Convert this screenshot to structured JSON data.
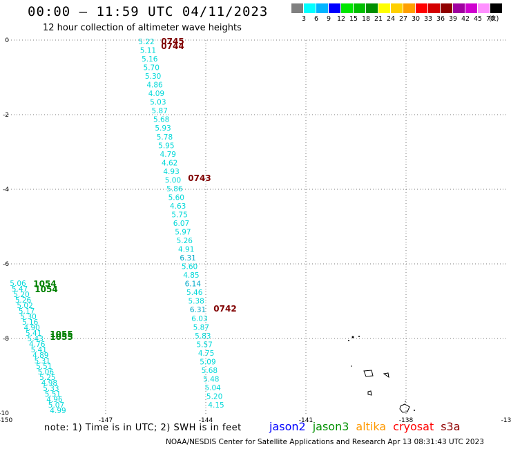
{
  "header": {
    "title": "00:00 – 11:59 UTC 04/11/2023",
    "subtitle": "12 hour collection of altimeter wave heights"
  },
  "legend": {
    "unit": "(ft)",
    "items": [
      {
        "label": "3",
        "color": "#808080"
      },
      {
        "label": "6",
        "color": "#00ffff"
      },
      {
        "label": "9",
        "color": "#00b4ff"
      },
      {
        "label": "12",
        "color": "#0000ff"
      },
      {
        "label": "15",
        "color": "#00e600"
      },
      {
        "label": "18",
        "color": "#00c000"
      },
      {
        "label": "21",
        "color": "#009000"
      },
      {
        "label": "24",
        "color": "#ffff00"
      },
      {
        "label": "27",
        "color": "#ffd000"
      },
      {
        "label": "30",
        "color": "#ffa000"
      },
      {
        "label": "33",
        "color": "#ff0000"
      },
      {
        "label": "36",
        "color": "#d40000"
      },
      {
        "label": "39",
        "color": "#900000"
      },
      {
        "label": "42",
        "color": "#a000a0"
      },
      {
        "label": "45",
        "color": "#d000d0"
      },
      {
        "label": "70",
        "color": "#ff90ff"
      },
      {
        "label": "",
        "color": "#000000"
      }
    ]
  },
  "map": {
    "lon_labels": [
      "-150",
      "-147",
      "-144",
      "-141",
      "-138",
      "-13"
    ],
    "lat_labels": [
      "0",
      "-2",
      "-4",
      "-6",
      "-8",
      "-10"
    ],
    "track_a": {
      "color": "#00d8d8",
      "values": [
        "5.22",
        "5.11",
        "5.16",
        "5.70",
        "5.30",
        "4.86",
        "4.09",
        "5.03",
        "5.87",
        "5.68",
        "5.93",
        "5.78",
        "5.95",
        "4.79",
        "4.62",
        "4.93",
        "5.00",
        "5.86",
        "5.60",
        "4.63",
        "5.75",
        "6.07",
        "5.97",
        "5.26",
        "4.91",
        "6.31",
        "5.60",
        "4.85",
        "6.14",
        "5.46",
        "5.38",
        "6.31",
        "6.03",
        "5.87",
        "5.83",
        "5.57",
        "4.75",
        "5.09",
        "5.68",
        "5.48",
        "5.04",
        "5.20",
        "4.15"
      ],
      "highlight_indices": [
        25,
        28,
        31
      ]
    },
    "track_b": {
      "color": "#00d8d8",
      "values": [
        "5.06",
        "5.47",
        "5.20",
        "5.26",
        "5.02",
        "5.17",
        "5.30",
        "5.16",
        "4.90",
        "5.41",
        "5.43",
        "4.76",
        "5.41",
        "4.89",
        "5.31",
        "5.51",
        "5.06",
        "5.25",
        "4.98",
        "5.33",
        "5.51",
        "4.96",
        "5.07",
        "4.99"
      ]
    },
    "time_labels": [
      {
        "text": "0745",
        "color": "#800000"
      },
      {
        "text": "0744",
        "color": "#800000"
      },
      {
        "text": "0743",
        "color": "#800000"
      },
      {
        "text": "0742",
        "color": "#800000"
      },
      {
        "text": "1054",
        "color": "#008000"
      },
      {
        "text": "1054",
        "color": "#008000"
      },
      {
        "text": "1055",
        "color": "#008000"
      },
      {
        "text": "1055",
        "color": "#008000"
      }
    ]
  },
  "footer": {
    "note": "note: 1) Time is in UTC; 2) SWH is in feet",
    "credit": "NOAA/NESDIS Center for Satellite Applications and Research   Apr 13 08:31:43 UTC 2023",
    "satellites": [
      {
        "name": "jason2",
        "color": "#0000ff"
      },
      {
        "name": "jason3",
        "color": "#009000"
      },
      {
        "name": "altika",
        "color": "#ff9900"
      },
      {
        "name": "cryosat",
        "color": "#ff0000"
      },
      {
        "name": "s3a",
        "color": "#900000"
      }
    ]
  }
}
